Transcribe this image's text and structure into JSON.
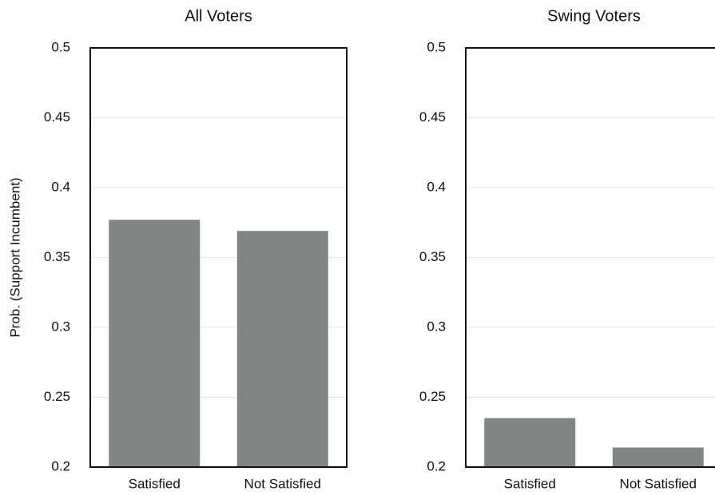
{
  "chart_data": [
    {
      "type": "bar",
      "title": "All Voters",
      "y_label": "Prob. (Support Incumbent)",
      "categories": [
        "Satisfied",
        "Not Satisfied"
      ],
      "values": [
        0.377,
        0.369
      ],
      "color": "#818683",
      "ylim": [
        0.2,
        0.5
      ],
      "yticks": [
        0.2,
        0.25,
        0.3,
        0.35,
        0.4,
        0.45,
        0.5
      ],
      "grid": true
    },
    {
      "type": "bar",
      "title": "Swing Voters",
      "categories": [
        "Satisfied",
        "Not Satisfied"
      ],
      "values": [
        0.235,
        0.214
      ],
      "color": "#818683",
      "ylim": [
        0.2,
        0.5
      ],
      "yticks": [
        0.2,
        0.25,
        0.3,
        0.35,
        0.4,
        0.45,
        0.5
      ],
      "grid": true
    }
  ]
}
